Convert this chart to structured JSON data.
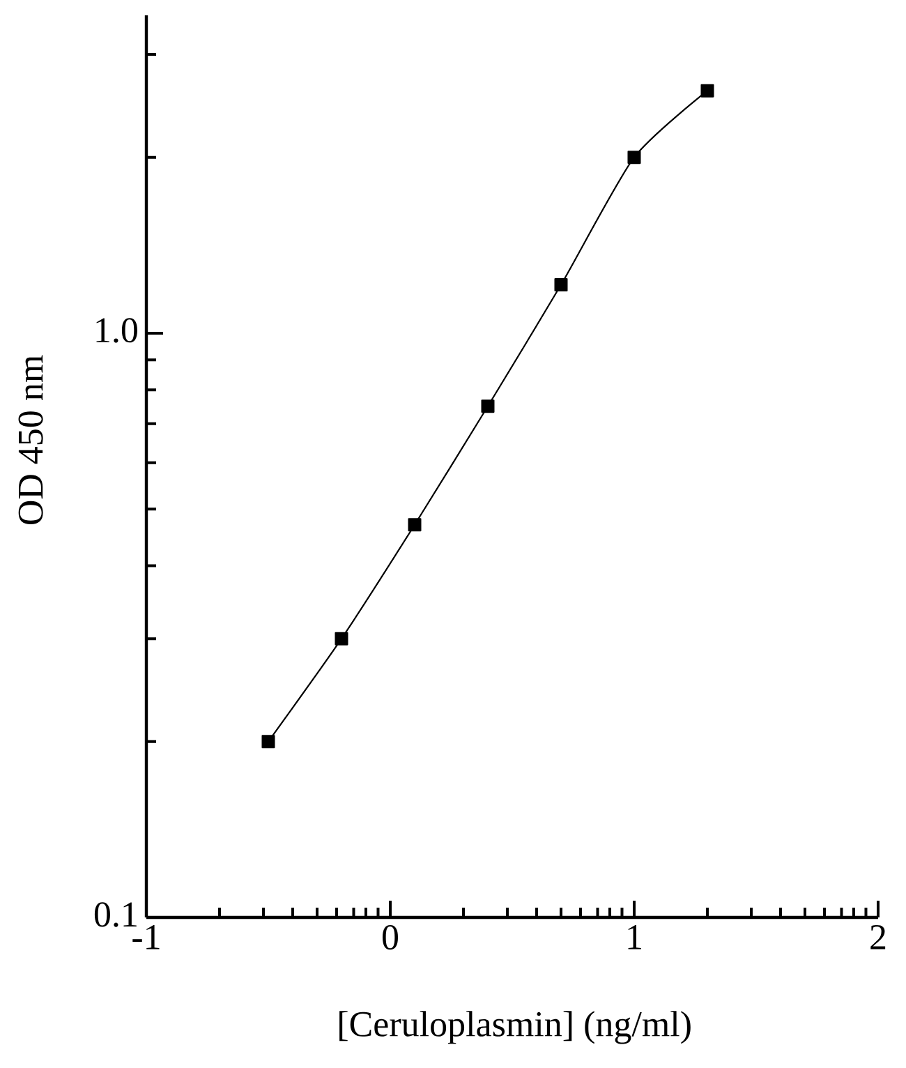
{
  "chart_data": {
    "type": "line",
    "xlabel": "[Ceruloplasmin] (ng/ml)",
    "ylabel": "OD 450 nm",
    "x": [
      -0.5,
      -0.2,
      0.1,
      0.4,
      0.7,
      1.0,
      1.3
    ],
    "series": [
      {
        "color": "#000000",
        "values": [
          0.2,
          0.3,
          0.47,
          0.75,
          1.21,
          2.0,
          2.6
        ]
      }
    ],
    "xlim": [
      -1,
      2
    ],
    "ylim": [
      0.1,
      3.5
    ],
    "xticks": [
      -1,
      {
        "value": -0.7,
        "label": null
      },
      {
        "value": -0.52,
        "label": null
      },
      {
        "value": -0.4,
        "label": null
      },
      {
        "value": -0.3,
        "label": null
      },
      {
        "value": -0.22,
        "label": null
      },
      {
        "value": -0.15,
        "label": null
      },
      {
        "value": -0.1,
        "label": null
      },
      {
        "value": -0.05,
        "label": null
      },
      0,
      {
        "value": 0.3,
        "label": null
      },
      {
        "value": 0.48,
        "label": null
      },
      {
        "value": 0.6,
        "label": null
      },
      {
        "value": 0.7,
        "label": null
      },
      {
        "value": 0.78,
        "label": null
      },
      {
        "value": 0.85,
        "label": null
      },
      {
        "value": 0.9,
        "label": null
      },
      {
        "value": 0.95,
        "label": null
      },
      1,
      {
        "value": 1.3,
        "label": null
      },
      {
        "value": 1.48,
        "label": null
      },
      {
        "value": 1.6,
        "label": null
      },
      {
        "value": 1.7,
        "label": null
      },
      {
        "value": 1.78,
        "label": null
      },
      {
        "value": 1.85,
        "label": null
      },
      {
        "value": 1.9,
        "label": null
      },
      {
        "value": 1.95,
        "label": null
      },
      2
    ],
    "yticks": [
      0.1,
      {
        "value": 0.2,
        "label": null
      },
      {
        "value": 0.3,
        "label": null
      },
      {
        "value": 0.4,
        "label": null
      },
      {
        "value": 0.5,
        "label": null
      },
      {
        "value": 0.6,
        "label": null
      },
      {
        "value": 0.7,
        "label": null
      },
      {
        "value": 0.8,
        "label": null
      },
      {
        "value": 0.9,
        "label": null
      },
      {
        "value": 1,
        "label": "1.0"
      },
      {
        "value": 2,
        "label": null
      },
      {
        "value": 3,
        "label": null
      }
    ],
    "log": "y",
    "marker": "square",
    "line_style": "solid"
  }
}
